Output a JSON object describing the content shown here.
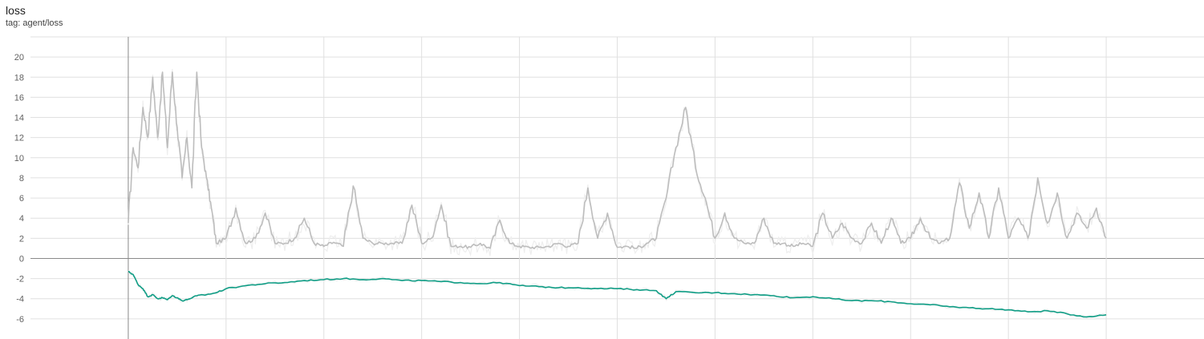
{
  "card": {
    "title": "loss",
    "tag": "tag: agent/loss"
  },
  "colors": {
    "raw": "#eeeeee",
    "smoothed_gray": "#bdbdbd",
    "smoothed_teal": "#0f9d85",
    "grid": "#e0e0e0",
    "axis": "#8a8a8a"
  },
  "chart_data": {
    "type": "line",
    "title": "loss",
    "xlabel": "",
    "ylabel": "",
    "ylim": [
      -8,
      22
    ],
    "xlim": [
      -1,
      11
    ],
    "yticks": [
      -6,
      -4,
      -2,
      0,
      2,
      4,
      6,
      8,
      10,
      12,
      14,
      16,
      18,
      20
    ],
    "ytick_labels": [
      "-6",
      "-4",
      "-2",
      "0",
      "2",
      "4",
      "6",
      "8",
      "10",
      "12",
      "14",
      "16",
      "18",
      "20"
    ],
    "xgrid": [
      0,
      1,
      2,
      3,
      4,
      5,
      6,
      7,
      8,
      9,
      10
    ],
    "x_tick_labels_visible": false,
    "grid": true,
    "legend": "none",
    "series": [
      {
        "color": "#bdbdbd",
        "x": [
          0,
          0.05,
          0.1,
          0.15,
          0.2,
          0.25,
          0.3,
          0.35,
          0.4,
          0.45,
          0.5,
          0.55,
          0.6,
          0.65,
          0.7,
          0.75,
          0.8,
          0.85,
          0.9,
          1.0,
          1.1,
          1.2,
          1.3,
          1.4,
          1.5,
          1.6,
          1.7,
          1.8,
          1.9,
          2.0,
          2.1,
          2.2,
          2.3,
          2.4,
          2.5,
          2.6,
          2.7,
          2.8,
          2.9,
          3.0,
          3.1,
          3.2,
          3.3,
          3.4,
          3.5,
          3.6,
          3.7,
          3.8,
          3.9,
          4.0,
          4.1,
          4.2,
          4.3,
          4.4,
          4.5,
          4.6,
          4.7,
          4.8,
          4.9,
          5.0,
          5.1,
          5.2,
          5.3,
          5.4,
          5.5,
          5.6,
          5.7,
          5.8,
          5.9,
          6.0,
          6.1,
          6.2,
          6.3,
          6.4,
          6.5,
          6.6,
          6.7,
          6.8,
          6.9,
          7.0,
          7.1,
          7.2,
          7.3,
          7.4,
          7.5,
          7.6,
          7.7,
          7.8,
          7.9,
          8.0,
          8.1,
          8.2,
          8.3,
          8.4,
          8.5,
          8.6,
          8.7,
          8.8,
          8.9,
          9.0,
          9.1,
          9.2,
          9.3,
          9.4,
          9.5,
          9.6,
          9.7,
          9.8,
          9.9,
          10.0
        ],
        "values": [
          3.5,
          11,
          9,
          15,
          12,
          18,
          12,
          18.5,
          11,
          18.5,
          13,
          8,
          12,
          7,
          18.5,
          11,
          8,
          5,
          1.5,
          2,
          5,
          1.5,
          2,
          4.5,
          1.5,
          1.5,
          2,
          4,
          1.5,
          1.2,
          1.6,
          1.2,
          7.2,
          2,
          1.5,
          1.5,
          1.5,
          1.5,
          5.3,
          1.5,
          2,
          5.3,
          1.2,
          1.2,
          1.1,
          1.5,
          1,
          3.8,
          1.5,
          1.2,
          1.1,
          1.1,
          1.2,
          1.5,
          1.2,
          1.5,
          7,
          2,
          4.5,
          1.1,
          1.2,
          1,
          1.5,
          2,
          6,
          11,
          15,
          9,
          6,
          2,
          4.5,
          2,
          1.5,
          1.5,
          4,
          1.5,
          1.5,
          1.2,
          1.5,
          1.2,
          4.5,
          2,
          3.5,
          2,
          1.5,
          3.5,
          1.5,
          4,
          1.5,
          2,
          4,
          2,
          1.5,
          2,
          7.5,
          3,
          6.5,
          2,
          7,
          2,
          4,
          2,
          8,
          3.5,
          6.5,
          2,
          4.5,
          3,
          5,
          2
        ],
        "show_raw_shadow": true
      },
      {
        "color": "#0f9d85",
        "x": [
          0,
          0.05,
          0.1,
          0.15,
          0.2,
          0.25,
          0.3,
          0.35,
          0.4,
          0.45,
          0.5,
          0.55,
          0.6,
          0.7,
          0.8,
          0.9,
          1.0,
          1.2,
          1.4,
          1.6,
          1.8,
          2.0,
          2.2,
          2.4,
          2.6,
          2.8,
          3.0,
          3.2,
          3.4,
          3.6,
          3.8,
          4.0,
          4.2,
          4.4,
          4.6,
          4.8,
          5.0,
          5.2,
          5.4,
          5.5,
          5.6,
          5.8,
          6.0,
          6.2,
          6.4,
          6.6,
          6.8,
          7.0,
          7.2,
          7.4,
          7.6,
          7.8,
          8.0,
          8.2,
          8.4,
          8.6,
          8.8,
          9.0,
          9.2,
          9.4,
          9.6,
          9.8,
          10.0
        ],
        "values": [
          -1.3,
          -1.6,
          -2.6,
          -3.0,
          -3.8,
          -3.6,
          -4.0,
          -3.9,
          -4.1,
          -3.7,
          -3.9,
          -4.2,
          -4.1,
          -3.7,
          -3.6,
          -3.4,
          -3.0,
          -2.7,
          -2.5,
          -2.4,
          -2.2,
          -2.1,
          -2.0,
          -2.1,
          -2.0,
          -2.2,
          -2.2,
          -2.3,
          -2.4,
          -2.5,
          -2.4,
          -2.7,
          -2.8,
          -2.9,
          -2.9,
          -3.0,
          -3.0,
          -3.1,
          -3.2,
          -4.0,
          -3.3,
          -3.4,
          -3.4,
          -3.5,
          -3.6,
          -3.7,
          -3.9,
          -3.8,
          -4.0,
          -4.2,
          -4.2,
          -4.3,
          -4.5,
          -4.6,
          -4.8,
          -4.9,
          -5.0,
          -5.1,
          -5.3,
          -5.2,
          -5.5,
          -5.8,
          -5.6
        ],
        "show_raw_shadow": true
      }
    ]
  }
}
